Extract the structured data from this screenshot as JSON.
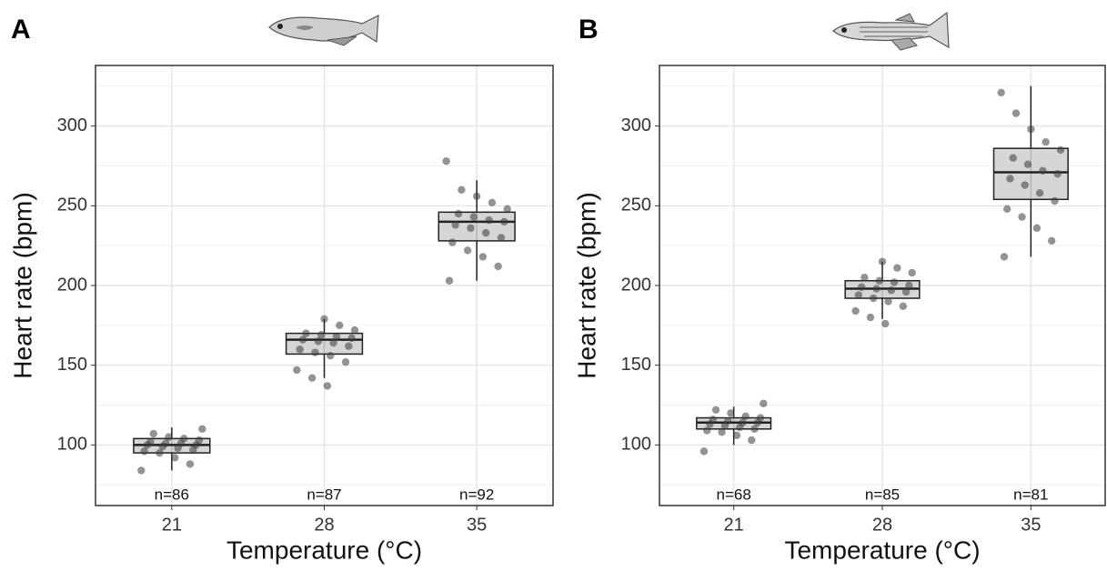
{
  "chart_data": [
    {
      "type": "box",
      "panel_label": "A",
      "x_label": "Temperature (°C)",
      "y_label": "Heart rate (bpm)",
      "categories": [
        "21",
        "28",
        "35"
      ],
      "annotations": [
        "n=86",
        "n=87",
        "n=92"
      ],
      "ylim": [
        62,
        338
      ],
      "yticks": [
        100,
        150,
        200,
        250,
        300
      ],
      "minor_yticks": [
        75,
        125,
        175,
        225,
        275,
        325
      ],
      "grid": true,
      "box_color": "#cfcfcf",
      "point_color": "#3a3a3a",
      "boxes": [
        {
          "min": 84,
          "q1": 95,
          "median": 100,
          "q3": 104,
          "max": 111,
          "points": [
            84,
            88,
            92,
            95,
            96,
            97,
            98,
            99,
            100,
            100,
            101,
            101,
            102,
            103,
            104,
            105,
            107,
            110
          ]
        },
        {
          "min": 142,
          "q1": 157,
          "median": 166,
          "q3": 170,
          "max": 179,
          "points": [
            137,
            142,
            147,
            152,
            156,
            158,
            160,
            162,
            164,
            165,
            166,
            167,
            168,
            169,
            170,
            172,
            175,
            179
          ]
        },
        {
          "min": 203,
          "q1": 228,
          "median": 240,
          "q3": 246,
          "max": 266,
          "points": [
            203,
            212,
            218,
            222,
            227,
            230,
            233,
            236,
            238,
            240,
            241,
            243,
            245,
            248,
            252,
            256,
            260,
            278
          ]
        }
      ]
    },
    {
      "type": "box",
      "panel_label": "B",
      "x_label": "Temperature (°C)",
      "y_label": "Heart rate (bpm)",
      "categories": [
        "21",
        "28",
        "35"
      ],
      "annotations": [
        "n=68",
        "n=85",
        "n=81"
      ],
      "ylim": [
        62,
        338
      ],
      "yticks": [
        100,
        150,
        200,
        250,
        300
      ],
      "minor_yticks": [
        75,
        125,
        175,
        225,
        275,
        325
      ],
      "grid": true,
      "box_color": "#cfcfcf",
      "point_color": "#3a3a3a",
      "boxes": [
        {
          "min": 100,
          "q1": 110,
          "median": 114,
          "q3": 117,
          "max": 124,
          "points": [
            96,
            103,
            106,
            108,
            109,
            110,
            111,
            112,
            113,
            114,
            114,
            115,
            116,
            117,
            118,
            120,
            122,
            126
          ]
        },
        {
          "min": 179,
          "q1": 192,
          "median": 198,
          "q3": 203,
          "max": 215,
          "points": [
            176,
            180,
            184,
            187,
            190,
            192,
            194,
            196,
            197,
            198,
            199,
            200,
            202,
            203,
            205,
            208,
            211,
            215
          ]
        },
        {
          "min": 218,
          "q1": 254,
          "median": 271,
          "q3": 286,
          "max": 325,
          "points": [
            218,
            228,
            236,
            243,
            248,
            253,
            258,
            263,
            267,
            270,
            272,
            276,
            280,
            285,
            290,
            298,
            308,
            321
          ]
        }
      ]
    }
  ]
}
